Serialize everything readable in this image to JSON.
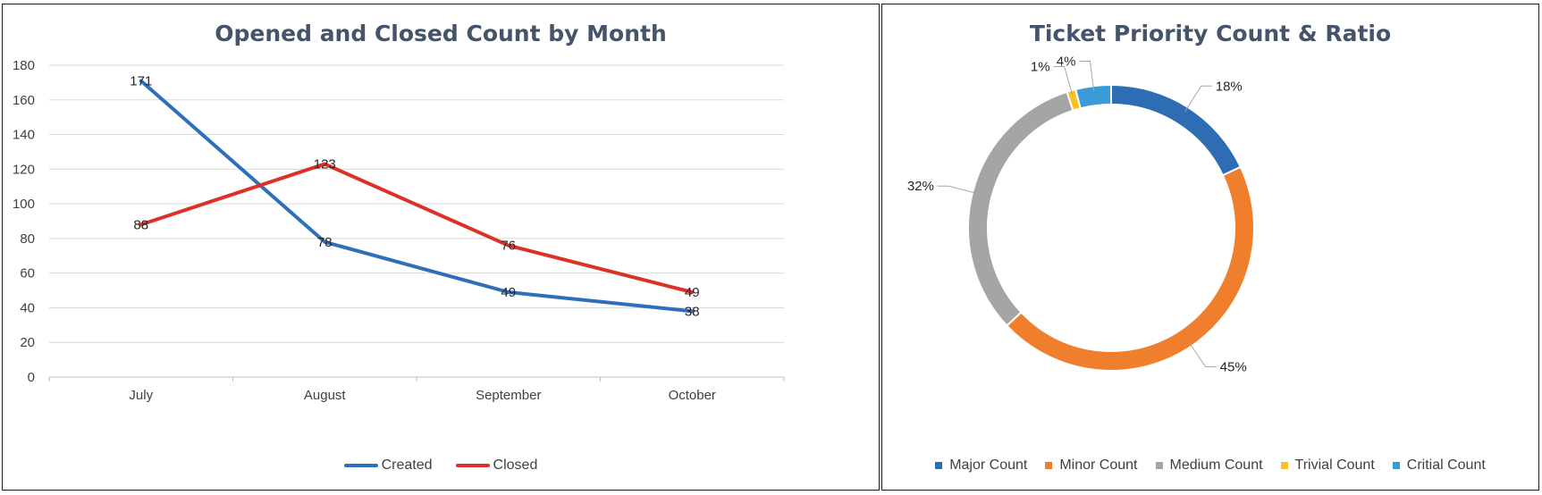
{
  "chart_data": [
    {
      "type": "line",
      "title": "Opened and Closed Count by Month",
      "categories": [
        "July",
        "August",
        "September",
        "October"
      ],
      "ylim": [
        0,
        180
      ],
      "yticks": [
        0,
        20,
        40,
        60,
        80,
        100,
        120,
        140,
        160,
        180
      ],
      "grid": true,
      "legend": "bottom",
      "series": [
        {
          "name": "Created",
          "values": [
            171,
            78,
            49,
            38
          ],
          "color": "#2e6fbb"
        },
        {
          "name": "Closed",
          "values": [
            88,
            123,
            76,
            49
          ],
          "color": "#dd3029"
        }
      ]
    },
    {
      "type": "pie",
      "title": "Ticket Priority Count & Ratio",
      "legend": "bottom",
      "slices": [
        {
          "name": "Major Count",
          "percent": 18,
          "label": "18%",
          "color": "#2e6db4"
        },
        {
          "name": "Minor Count",
          "percent": 45,
          "label": "45%",
          "color": "#f07f2d"
        },
        {
          "name": "Medium Count",
          "percent": 32,
          "label": "32%",
          "color": "#a5a5a5"
        },
        {
          "name": "Trivial Count",
          "percent": 1,
          "label": "1%",
          "color": "#fbc220"
        },
        {
          "name": "Critial Count",
          "percent": 4,
          "label": "4%",
          "color": "#3a9bd8"
        }
      ]
    }
  ]
}
